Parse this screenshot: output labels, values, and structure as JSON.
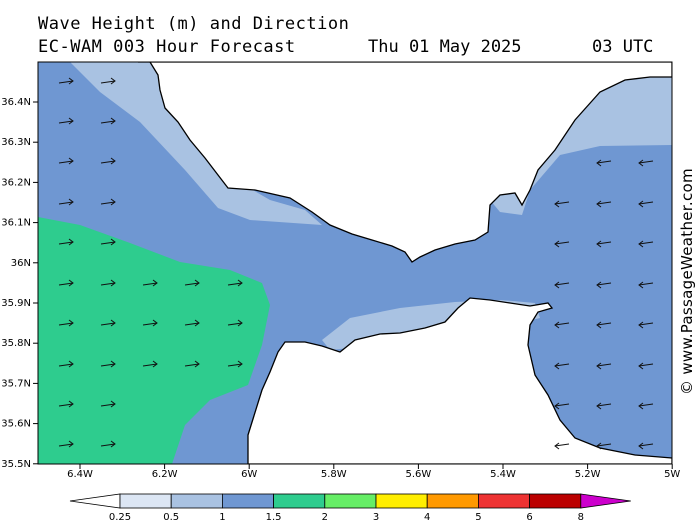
{
  "header": {
    "title": "Wave Height (m) and Direction",
    "model": "EC-WAM 003 Hour Forecast",
    "date": "Thu 01 May 2025",
    "time": "03 UTC"
  },
  "watermark": "© www.PassageWeather.com",
  "map": {
    "lat_ticks": [
      "36.4N",
      "36.3N",
      "36.2N",
      "36.1N",
      "36N",
      "35.9N",
      "35.8N",
      "35.7N",
      "35.6N",
      "35.5N"
    ],
    "lon_ticks": [
      "6.4W",
      "6.2W",
      "6W",
      "5.8W",
      "5.6W",
      "5.4W",
      "5.2W",
      "5W"
    ],
    "colors": {
      "land": "#ffffff",
      "band_025_05": "#dce6f4",
      "band_05_1": "#a9c2e2",
      "band_1_15": "#6f97d2",
      "band_15_2": "#2ecc8e",
      "coast": "#000000"
    }
  },
  "legend": {
    "labels": [
      "0.25",
      "0.5",
      "1",
      "1.5",
      "2",
      "3",
      "4",
      "5",
      "6",
      "8"
    ],
    "colors": [
      "#ffffff",
      "#dce6f4",
      "#a9c2e2",
      "#6f97d2",
      "#2ecc8e",
      "#66ee66",
      "#ffee00",
      "#ff9900",
      "#ee3333",
      "#bb0000",
      "#cc00cc"
    ]
  }
}
